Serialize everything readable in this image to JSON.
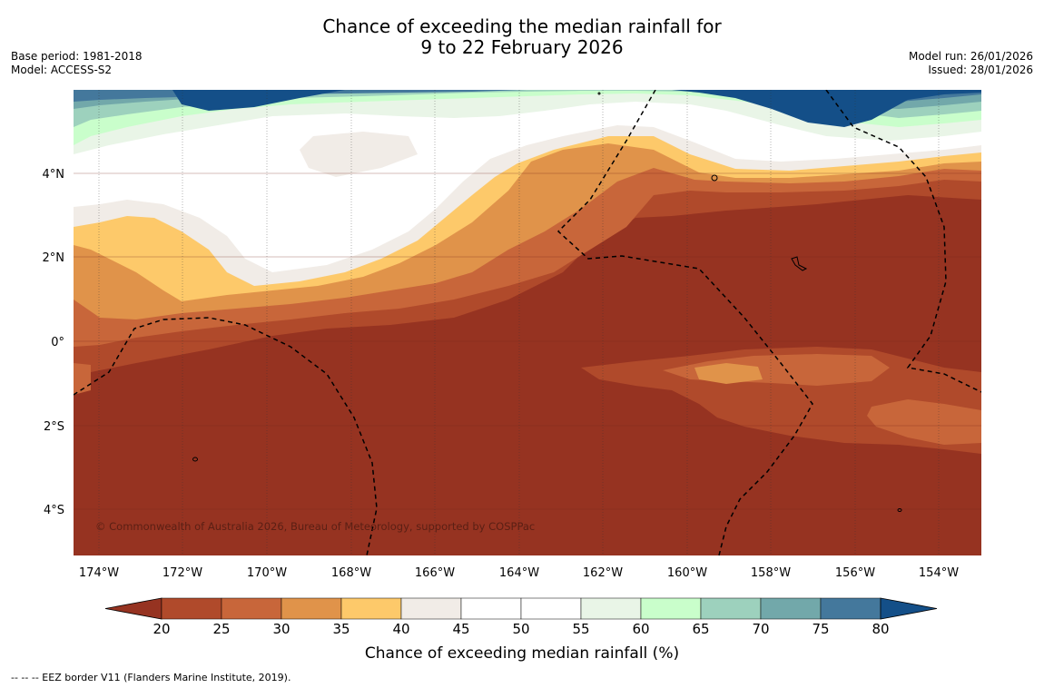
{
  "header": {
    "title_line1": "Chance of exceeding the median rainfall for",
    "title_line2": "9 to 22 February 2026",
    "base_period": "Base period: 1981-2018",
    "model": "Model: ACCESS-S2",
    "model_run": "Model run: 26/01/2026",
    "issued": "Issued: 28/01/2026"
  },
  "map": {
    "lat_labels": [
      "4°N",
      "2°N",
      "0°",
      "2°S",
      "4°S"
    ],
    "lon_labels": [
      "174°W",
      "172°W",
      "170°W",
      "168°W",
      "166°W",
      "164°W",
      "162°W",
      "160°W",
      "158°W",
      "156°W",
      "154°W"
    ],
    "copyright": "© Commonwealth of Australia 2026, Bureau of Meteorology, supported by COSPPac"
  },
  "colorbar": {
    "ticks": [
      "20",
      "25",
      "30",
      "35",
      "40",
      "45",
      "50",
      "55",
      "60",
      "65",
      "70",
      "75",
      "80"
    ],
    "colors": [
      "#963321",
      "#b04a2b",
      "#c8663a",
      "#e0934a",
      "#fdc96a",
      "#f1ece7",
      "#ffffff",
      "#ffffff",
      "#e9f5e7",
      "#c9fecb",
      "#9dd1bd",
      "#72a8aa",
      "#44789c",
      "#144f88"
    ],
    "label": "Chance of exceeding median rainfall (%)"
  },
  "footer": {
    "legend": "--  --  -- EEZ border V11 (Flanders Marine Institute, 2019)."
  }
}
